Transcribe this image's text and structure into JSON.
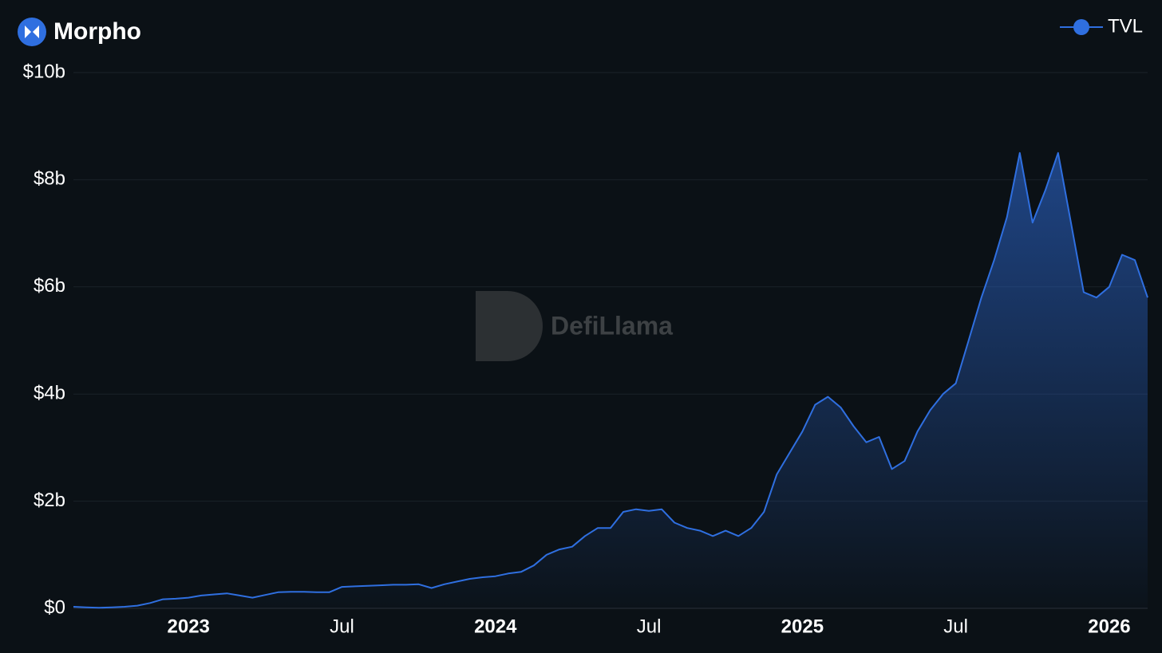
{
  "chart_data": {
    "type": "area",
    "title": "Morpho",
    "watermark": "DefiLlama",
    "categories": [
      null,
      null,
      null,
      null,
      null,
      null,
      null,
      null,
      null,
      "2023",
      null,
      null,
      null,
      null,
      null,
      null,
      null,
      null,
      null,
      null,
      null,
      "Jul",
      null,
      null,
      null,
      null,
      null,
      null,
      null,
      null,
      null,
      null,
      null,
      "2024",
      null,
      null,
      null,
      null,
      null,
      null,
      null,
      null,
      null,
      null,
      null,
      "Jul",
      null,
      null,
      null,
      null,
      null,
      null,
      null,
      null,
      null,
      null,
      null,
      "2025",
      null,
      null,
      null,
      null,
      null,
      null,
      null,
      null,
      null,
      null,
      null,
      "Jul",
      null,
      null,
      null,
      null,
      null,
      null,
      null,
      null,
      null,
      null,
      null,
      "2026",
      null,
      null,
      null
    ],
    "series": [
      {
        "name": "TVL",
        "color": "#2f6fe0",
        "values": [
          0.03,
          0.02,
          0.01,
          0.02,
          0.03,
          0.05,
          0.1,
          0.17,
          0.18,
          0.2,
          0.24,
          0.26,
          0.28,
          0.24,
          0.2,
          0.25,
          0.3,
          0.31,
          0.31,
          0.3,
          0.3,
          0.4,
          0.41,
          0.42,
          0.43,
          0.44,
          0.44,
          0.45,
          0.38,
          0.45,
          0.5,
          0.55,
          0.58,
          0.6,
          0.65,
          0.68,
          0.8,
          1.0,
          1.1,
          1.15,
          1.35,
          1.5,
          1.5,
          1.8,
          1.85,
          1.82,
          1.85,
          1.6,
          1.5,
          1.45,
          1.35,
          1.45,
          1.35,
          1.5,
          1.8,
          2.5,
          2.9,
          3.3,
          3.8,
          3.95,
          3.75,
          3.4,
          3.1,
          3.2,
          2.6,
          2.75,
          3.3,
          3.7,
          4.0,
          4.2,
          5.0,
          5.8,
          6.5,
          7.3,
          8.5,
          7.2,
          7.8,
          8.5,
          7.2,
          5.9,
          5.8,
          6.0,
          6.6,
          6.5,
          5.8
        ]
      }
    ],
    "ylim": [
      0,
      10
    ],
    "yticks": [
      {
        "value": 0,
        "label": "$0"
      },
      {
        "value": 2,
        "label": "$2b"
      },
      {
        "value": 4,
        "label": "$4b"
      },
      {
        "value": 6,
        "label": "$6b"
      },
      {
        "value": 8,
        "label": "$8b"
      },
      {
        "value": 10,
        "label": "$10b"
      }
    ],
    "grid": true,
    "legend": "top-right"
  }
}
